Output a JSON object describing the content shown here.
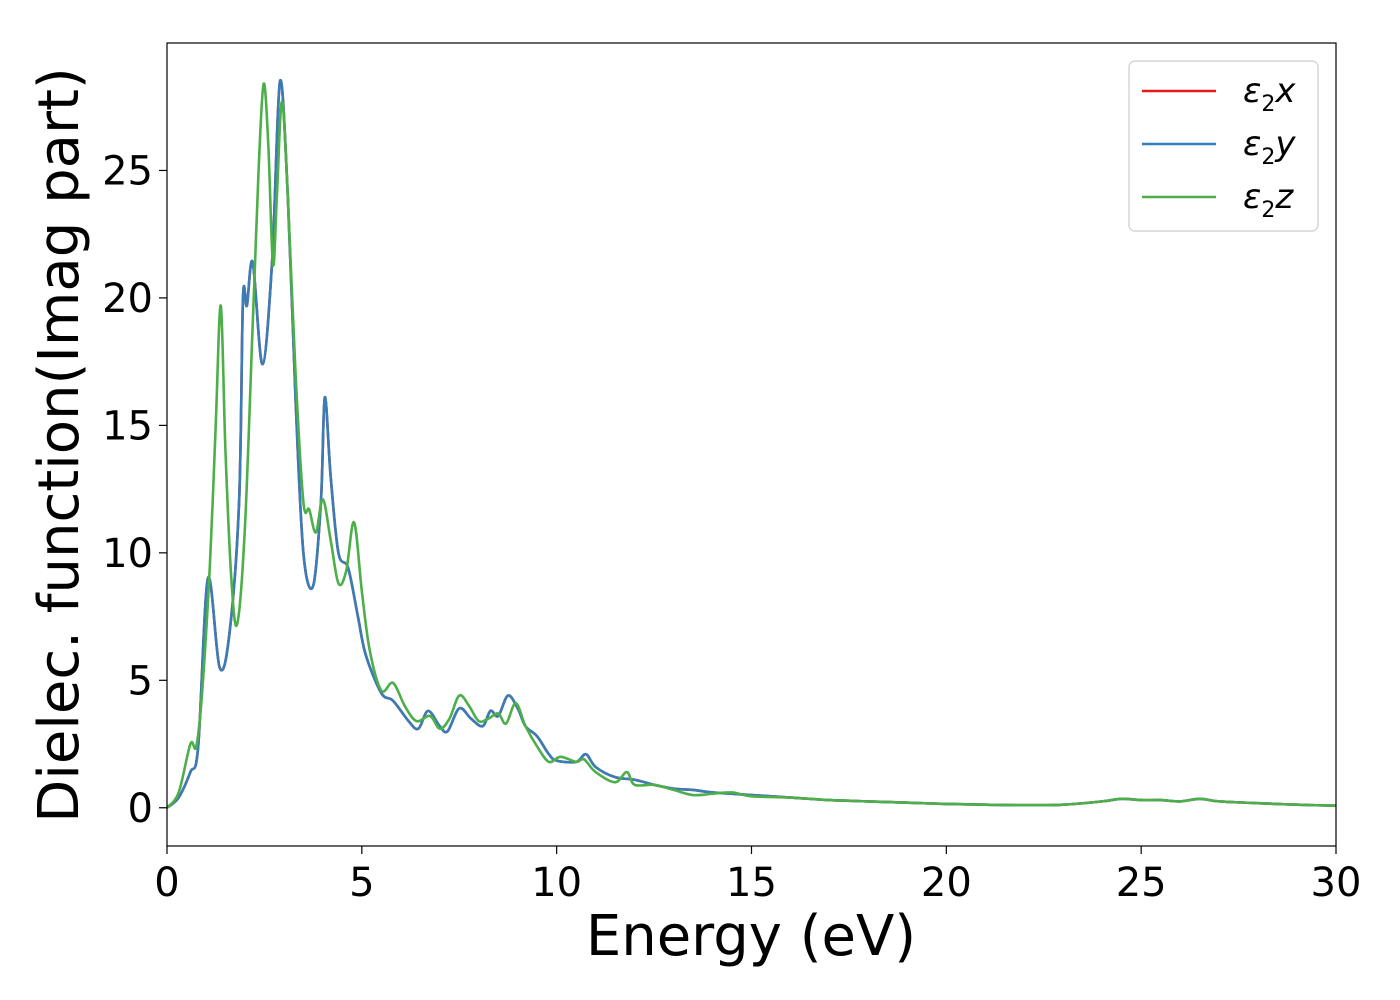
{
  "chart_data": {
    "type": "line",
    "title": "",
    "xlabel": "Energy (eV)",
    "ylabel": "Dielec. function(Imag part)",
    "xlim": [
      0,
      30
    ],
    "ylim": [
      -1.5,
      30
    ],
    "xticks": [
      0,
      5,
      10,
      15,
      20,
      25,
      30
    ],
    "yticks": [
      0,
      5,
      10,
      15,
      20,
      25
    ],
    "grid": false,
    "legend_position": "top-right",
    "series": [
      {
        "name": "ε2x",
        "symbol": "ε",
        "sub": "2",
        "var": "x",
        "color": "#e41a1c",
        "points": [
          [
            0,
            0
          ],
          [
            0.3,
            0.4
          ],
          [
            0.6,
            1.4
          ],
          [
            0.8,
            2.4
          ],
          [
            1.05,
            9.0
          ],
          [
            1.35,
            5.5
          ],
          [
            1.6,
            6.8
          ],
          [
            1.85,
            12
          ],
          [
            1.95,
            20.0
          ],
          [
            2.05,
            19.7
          ],
          [
            2.2,
            21.4
          ],
          [
            2.45,
            17.4
          ],
          [
            2.7,
            21.5
          ],
          [
            2.9,
            28.5
          ],
          [
            3.1,
            24
          ],
          [
            3.3,
            16
          ],
          [
            3.5,
            10
          ],
          [
            3.75,
            8.7
          ],
          [
            3.95,
            12
          ],
          [
            4.05,
            16.1
          ],
          [
            4.2,
            13
          ],
          [
            4.4,
            10
          ],
          [
            4.65,
            9.4
          ],
          [
            4.9,
            7.5
          ],
          [
            5.1,
            6.0
          ],
          [
            5.5,
            4.5
          ],
          [
            5.8,
            4.2
          ],
          [
            6.2,
            3.4
          ],
          [
            6.45,
            3.1
          ],
          [
            6.7,
            3.8
          ],
          [
            7.0,
            3.2
          ],
          [
            7.2,
            3.0
          ],
          [
            7.5,
            3.9
          ],
          [
            7.8,
            3.5
          ],
          [
            8.1,
            3.2
          ],
          [
            8.3,
            3.8
          ],
          [
            8.5,
            3.6
          ],
          [
            8.75,
            4.4
          ],
          [
            9.0,
            3.9
          ],
          [
            9.2,
            3.2
          ],
          [
            9.5,
            2.8
          ],
          [
            9.8,
            2.1
          ],
          [
            10.0,
            1.85
          ],
          [
            10.5,
            1.8
          ],
          [
            10.75,
            2.1
          ],
          [
            11.0,
            1.6
          ],
          [
            11.5,
            1.2
          ],
          [
            12.0,
            1.1
          ],
          [
            12.5,
            0.9
          ],
          [
            13.0,
            0.75
          ],
          [
            13.5,
            0.7
          ],
          [
            14.0,
            0.6
          ],
          [
            15.0,
            0.5
          ],
          [
            16.0,
            0.4
          ],
          [
            17.0,
            0.3
          ],
          [
            18.0,
            0.25
          ],
          [
            19.0,
            0.2
          ],
          [
            20.0,
            0.15
          ],
          [
            21.0,
            0.12
          ],
          [
            22.0,
            0.1
          ],
          [
            23.0,
            0.12
          ],
          [
            24.0,
            0.25
          ],
          [
            24.5,
            0.35
          ],
          [
            25.0,
            0.3
          ],
          [
            25.5,
            0.3
          ],
          [
            26.0,
            0.25
          ],
          [
            26.5,
            0.35
          ],
          [
            27.0,
            0.25
          ],
          [
            28.0,
            0.18
          ],
          [
            29.0,
            0.12
          ],
          [
            30.0,
            0.08
          ]
        ]
      },
      {
        "name": "ε2y",
        "symbol": "ε",
        "sub": "2",
        "var": "y",
        "color": "#377eb8",
        "points": [
          [
            0,
            0
          ],
          [
            0.3,
            0.4
          ],
          [
            0.6,
            1.4
          ],
          [
            0.8,
            2.4
          ],
          [
            1.05,
            9.0
          ],
          [
            1.35,
            5.5
          ],
          [
            1.6,
            6.8
          ],
          [
            1.85,
            12
          ],
          [
            1.95,
            20.0
          ],
          [
            2.05,
            19.7
          ],
          [
            2.2,
            21.4
          ],
          [
            2.45,
            17.4
          ],
          [
            2.7,
            21.5
          ],
          [
            2.9,
            28.5
          ],
          [
            3.1,
            24
          ],
          [
            3.3,
            16
          ],
          [
            3.5,
            10
          ],
          [
            3.75,
            8.7
          ],
          [
            3.95,
            12
          ],
          [
            4.05,
            16.1
          ],
          [
            4.2,
            13
          ],
          [
            4.4,
            10
          ],
          [
            4.65,
            9.4
          ],
          [
            4.9,
            7.5
          ],
          [
            5.1,
            6.0
          ],
          [
            5.5,
            4.5
          ],
          [
            5.8,
            4.2
          ],
          [
            6.2,
            3.4
          ],
          [
            6.45,
            3.1
          ],
          [
            6.7,
            3.8
          ],
          [
            7.0,
            3.2
          ],
          [
            7.2,
            3.0
          ],
          [
            7.5,
            3.9
          ],
          [
            7.8,
            3.5
          ],
          [
            8.1,
            3.2
          ],
          [
            8.3,
            3.8
          ],
          [
            8.5,
            3.6
          ],
          [
            8.75,
            4.4
          ],
          [
            9.0,
            3.9
          ],
          [
            9.2,
            3.2
          ],
          [
            9.5,
            2.8
          ],
          [
            9.8,
            2.1
          ],
          [
            10.0,
            1.85
          ],
          [
            10.5,
            1.8
          ],
          [
            10.75,
            2.1
          ],
          [
            11.0,
            1.6
          ],
          [
            11.5,
            1.2
          ],
          [
            12.0,
            1.1
          ],
          [
            12.5,
            0.9
          ],
          [
            13.0,
            0.75
          ],
          [
            13.5,
            0.7
          ],
          [
            14.0,
            0.6
          ],
          [
            15.0,
            0.5
          ],
          [
            16.0,
            0.4
          ],
          [
            17.0,
            0.3
          ],
          [
            18.0,
            0.25
          ],
          [
            19.0,
            0.2
          ],
          [
            20.0,
            0.15
          ],
          [
            21.0,
            0.12
          ],
          [
            22.0,
            0.1
          ],
          [
            23.0,
            0.12
          ],
          [
            24.0,
            0.25
          ],
          [
            24.5,
            0.35
          ],
          [
            25.0,
            0.3
          ],
          [
            25.5,
            0.3
          ],
          [
            26.0,
            0.25
          ],
          [
            26.5,
            0.35
          ],
          [
            27.0,
            0.25
          ],
          [
            28.0,
            0.18
          ],
          [
            29.0,
            0.12
          ],
          [
            30.0,
            0.08
          ]
        ]
      },
      {
        "name": "ε2z",
        "symbol": "ε",
        "sub": "2",
        "var": "z",
        "color": "#4daf4a",
        "points": [
          [
            0,
            0
          ],
          [
            0.3,
            0.6
          ],
          [
            0.6,
            2.5
          ],
          [
            0.75,
            2.4
          ],
          [
            0.9,
            4.5
          ],
          [
            1.1,
            9.5
          ],
          [
            1.25,
            15
          ],
          [
            1.38,
            19.7
          ],
          [
            1.5,
            14
          ],
          [
            1.65,
            9
          ],
          [
            1.8,
            7.2
          ],
          [
            2.0,
            11
          ],
          [
            2.2,
            19
          ],
          [
            2.35,
            25
          ],
          [
            2.48,
            28.4
          ],
          [
            2.6,
            26
          ],
          [
            2.72,
            21.3
          ],
          [
            2.82,
            24
          ],
          [
            2.95,
            27.7
          ],
          [
            3.1,
            24
          ],
          [
            3.3,
            17
          ],
          [
            3.5,
            12
          ],
          [
            3.65,
            11.7
          ],
          [
            3.82,
            10.8
          ],
          [
            4.0,
            12.1
          ],
          [
            4.2,
            10.5
          ],
          [
            4.4,
            8.8
          ],
          [
            4.6,
            9.3
          ],
          [
            4.8,
            11.2
          ],
          [
            5.0,
            8.5
          ],
          [
            5.2,
            6.2
          ],
          [
            5.5,
            4.6
          ],
          [
            5.8,
            4.9
          ],
          [
            6.1,
            4.0
          ],
          [
            6.4,
            3.4
          ],
          [
            6.75,
            3.6
          ],
          [
            7.0,
            3.1
          ],
          [
            7.25,
            3.5
          ],
          [
            7.5,
            4.4
          ],
          [
            7.75,
            4.0
          ],
          [
            8.0,
            3.4
          ],
          [
            8.25,
            3.5
          ],
          [
            8.5,
            3.7
          ],
          [
            8.7,
            3.3
          ],
          [
            8.95,
            4.1
          ],
          [
            9.2,
            3.2
          ],
          [
            9.5,
            2.4
          ],
          [
            9.8,
            1.8
          ],
          [
            10.1,
            2.0
          ],
          [
            10.5,
            1.8
          ],
          [
            10.7,
            1.9
          ],
          [
            11.0,
            1.4
          ],
          [
            11.5,
            1.0
          ],
          [
            11.8,
            1.4
          ],
          [
            12.0,
            0.9
          ],
          [
            12.5,
            0.9
          ],
          [
            13.0,
            0.7
          ],
          [
            13.5,
            0.5
          ],
          [
            14.0,
            0.55
          ],
          [
            14.5,
            0.6
          ],
          [
            15.0,
            0.45
          ],
          [
            16.0,
            0.4
          ],
          [
            17.0,
            0.3
          ],
          [
            18.0,
            0.25
          ],
          [
            19.0,
            0.2
          ],
          [
            20.0,
            0.15
          ],
          [
            21.0,
            0.12
          ],
          [
            22.0,
            0.1
          ],
          [
            23.0,
            0.12
          ],
          [
            24.0,
            0.25
          ],
          [
            24.5,
            0.35
          ],
          [
            25.0,
            0.3
          ],
          [
            25.5,
            0.3
          ],
          [
            26.0,
            0.25
          ],
          [
            26.5,
            0.35
          ],
          [
            27.0,
            0.25
          ],
          [
            28.0,
            0.18
          ],
          [
            29.0,
            0.12
          ],
          [
            30.0,
            0.08
          ]
        ]
      }
    ]
  }
}
